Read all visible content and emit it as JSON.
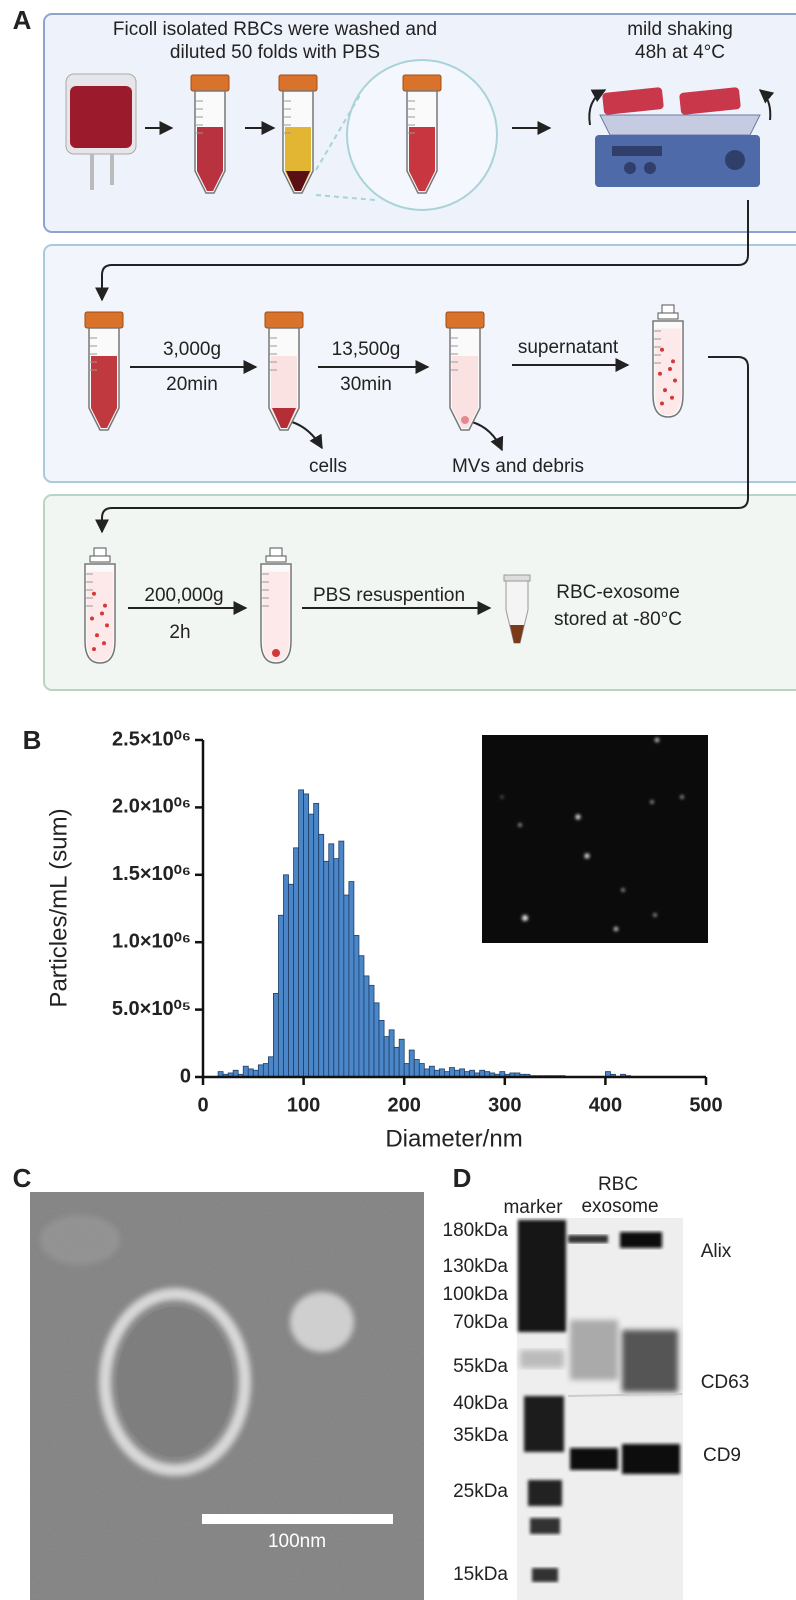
{
  "panel_labels": [
    "A",
    "B",
    "C",
    "D"
  ],
  "panel_a": {
    "prep_text": [
      "Ficoll isolated RBCs were washed and",
      "diluted 50 folds with PBS"
    ],
    "shaking_text": [
      "mild shaking",
      "48h at 4°C"
    ],
    "spin1": {
      "speed": "3,000g",
      "time": "20min"
    },
    "spin2": {
      "speed": "13,500g",
      "time": "30min"
    },
    "supernatant": "supernatant",
    "cells": "cells",
    "mvs": "MVs and debris",
    "spin3": {
      "speed": "200,000g",
      "time": "2h"
    },
    "resuspension": "PBS resuspention",
    "product": [
      "RBC-exosome",
      "stored at -80°C"
    ]
  },
  "chart_data": {
    "type": "histogram",
    "x_label": "Diameter/nm",
    "y_label": "Particles/mL (sum)",
    "color": "#4a86c8",
    "bins": [
      15,
      20,
      25,
      30,
      35,
      40,
      45,
      50,
      55,
      60,
      65,
      70,
      75,
      80,
      85,
      90,
      95,
      100,
      105,
      110,
      115,
      120,
      125,
      130,
      135,
      140,
      145,
      150,
      155,
      160,
      165,
      170,
      175,
      180,
      185,
      190,
      195,
      200,
      205,
      210,
      215,
      220,
      225,
      230,
      235,
      240,
      245,
      250,
      255,
      260,
      265,
      270,
      275,
      280,
      285,
      290,
      295,
      300,
      305,
      310,
      315,
      320,
      325,
      330,
      335,
      340,
      345,
      350,
      355,
      360,
      365,
      370,
      375,
      380,
      385,
      390,
      395,
      400,
      405,
      410,
      415,
      420,
      425
    ],
    "values": [
      40000,
      20000,
      30000,
      50000,
      20000,
      80000,
      60000,
      50000,
      90000,
      100000,
      150000,
      620000,
      1200000,
      1500000,
      1430000,
      1700000,
      2130000,
      2100000,
      1950000,
      2030000,
      1800000,
      1600000,
      1730000,
      1620000,
      1750000,
      1350000,
      1450000,
      1050000,
      900000,
      750000,
      680000,
      550000,
      420000,
      300000,
      350000,
      220000,
      280000,
      100000,
      200000,
      130000,
      100000,
      60000,
      80000,
      50000,
      60000,
      40000,
      70000,
      50000,
      60000,
      40000,
      50000,
      30000,
      50000,
      40000,
      30000,
      20000,
      40000,
      20000,
      30000,
      30000,
      20000,
      20000,
      10000,
      10000,
      10000,
      10000,
      10000,
      10000,
      10000,
      0,
      0,
      0,
      0,
      0,
      0,
      0,
      0,
      40000,
      20000,
      0,
      20000,
      10000
    ],
    "xlim": [
      0,
      500
    ],
    "xticks": [
      0,
      100,
      200,
      300,
      400,
      500
    ],
    "ylim": [
      0,
      2500000
    ],
    "yticks": [
      0,
      {
        "value": 500000,
        "label": "5.0×10⁰⁵"
      },
      {
        "value": 1000000,
        "label": "1.0×10⁰⁶"
      },
      {
        "value": 1500000,
        "label": "1.5×10⁰⁶"
      },
      {
        "value": 2000000,
        "label": "2.0×10⁰⁶"
      },
      {
        "value": 2500000,
        "label": "2.5×10⁰⁶"
      }
    ]
  },
  "panel_c": {
    "scale_bar": "100nm"
  },
  "panel_d": {
    "lane_labels": [
      "marker",
      "RBC",
      "exosome"
    ],
    "markers": [
      "180kDa",
      "130kDa",
      "100kDa",
      "70kDa",
      "55kDa",
      "40kDa",
      "35kDa",
      "25kDa",
      "15kDa"
    ],
    "proteins": [
      "Alix",
      "CD63",
      "CD9"
    ]
  }
}
